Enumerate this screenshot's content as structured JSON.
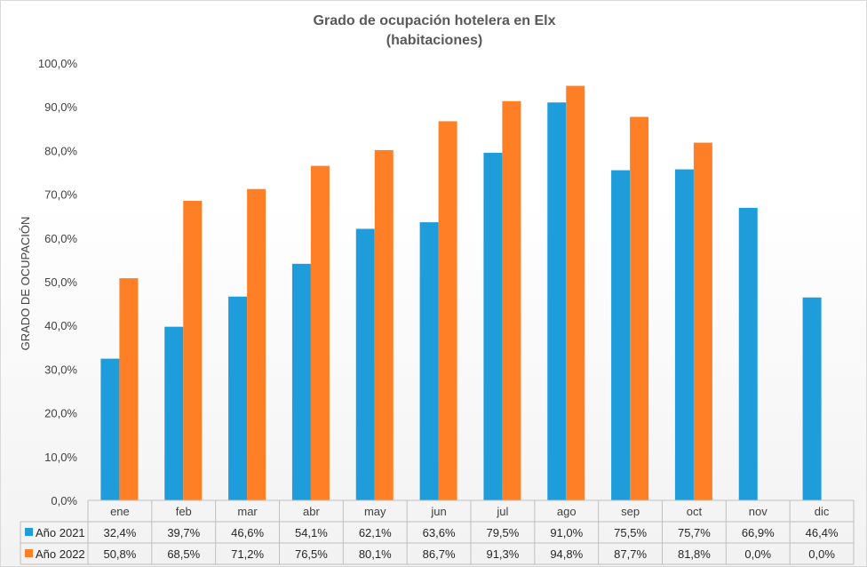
{
  "chart_data": {
    "type": "bar",
    "title_lines": [
      "Grado de ocupación hotelera en Elx",
      "(habitaciones)"
    ],
    "ylabel": "GRADO DE OCUPACIÓN",
    "xlabel": "",
    "ylim": [
      0,
      100
    ],
    "y_ticks": [
      "0,0%",
      "10,0%",
      "20,0%",
      "30,0%",
      "40,0%",
      "50,0%",
      "60,0%",
      "70,0%",
      "80,0%",
      "90,0%",
      "100,0%"
    ],
    "categories": [
      "ene",
      "feb",
      "mar",
      "abr",
      "may",
      "jun",
      "jul",
      "ago",
      "sep",
      "oct",
      "nov",
      "dic"
    ],
    "series": [
      {
        "name": "Año 2021",
        "color": "#1f9ddb",
        "values": [
          32.4,
          39.7,
          46.6,
          54.1,
          62.1,
          63.6,
          79.5,
          91.0,
          75.5,
          75.7,
          66.9,
          46.4
        ],
        "labels": [
          "32,4%",
          "39,7%",
          "46,6%",
          "54,1%",
          "62,1%",
          "63,6%",
          "79,5%",
          "91,0%",
          "75,5%",
          "75,7%",
          "66,9%",
          "46,4%"
        ]
      },
      {
        "name": "Año 2022",
        "color": "#ff7f27",
        "values": [
          50.8,
          68.5,
          71.2,
          76.5,
          80.1,
          86.7,
          91.3,
          94.8,
          87.7,
          81.8,
          0.0,
          0.0
        ],
        "labels": [
          "50,8%",
          "68,5%",
          "71,2%",
          "76,5%",
          "80,1%",
          "86,7%",
          "91,3%",
          "94,8%",
          "87,7%",
          "81,8%",
          "0,0%",
          "0,0%"
        ]
      }
    ],
    "grid": false,
    "legend": "data-table"
  }
}
